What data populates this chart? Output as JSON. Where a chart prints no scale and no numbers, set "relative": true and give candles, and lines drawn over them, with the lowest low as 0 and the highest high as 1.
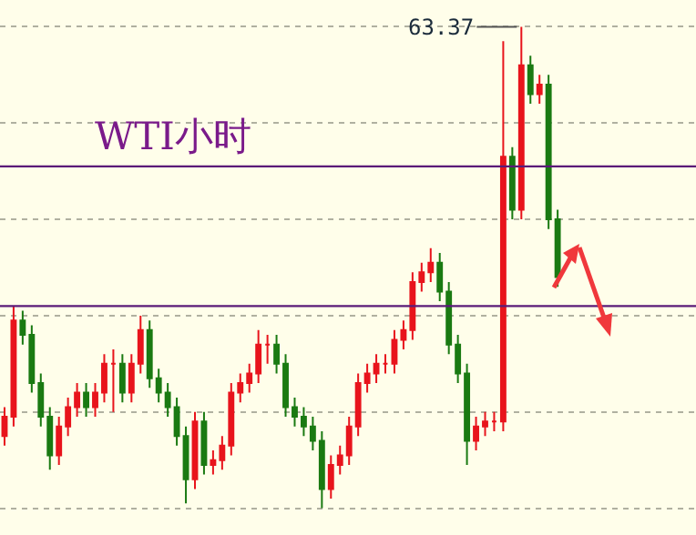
{
  "chart_data": {
    "type": "candlestick",
    "title": "WTI小时",
    "relative": true,
    "grid": "y",
    "categories": [
      null,
      null,
      null,
      null,
      null,
      null,
      null,
      null,
      null,
      null,
      null,
      null,
      null,
      null,
      null,
      null,
      null,
      null,
      null,
      null,
      null,
      null,
      null,
      null,
      null,
      null,
      null,
      null,
      null,
      null,
      null,
      null,
      null,
      null,
      null,
      null,
      null,
      null,
      null,
      null,
      null,
      null,
      null,
      null,
      null,
      null,
      null,
      null,
      null,
      null,
      null,
      null,
      null,
      null,
      null,
      null,
      null,
      null,
      null,
      null,
      null,
      null
    ],
    "ohlc": [
      [
        0.15,
        0.21,
        0.13,
        0.19
      ],
      [
        0.19,
        0.42,
        0.17,
        0.39
      ],
      [
        0.39,
        0.41,
        0.34,
        0.36
      ],
      [
        0.36,
        0.38,
        0.24,
        0.26
      ],
      [
        0.26,
        0.28,
        0.17,
        0.19
      ],
      [
        0.19,
        0.21,
        0.08,
        0.11
      ],
      [
        0.11,
        0.19,
        0.09,
        0.17
      ],
      [
        0.17,
        0.23,
        0.15,
        0.21
      ],
      [
        0.21,
        0.26,
        0.19,
        0.24
      ],
      [
        0.24,
        0.26,
        0.19,
        0.21
      ],
      [
        0.21,
        0.26,
        0.19,
        0.24
      ],
      [
        0.24,
        0.32,
        0.22,
        0.3
      ],
      [
        0.3,
        0.33,
        0.2,
        0.3
      ],
      [
        0.3,
        0.32,
        0.22,
        0.24
      ],
      [
        0.24,
        0.32,
        0.22,
        0.3
      ],
      [
        0.3,
        0.4,
        0.28,
        0.37
      ],
      [
        0.37,
        0.39,
        0.25,
        0.27
      ],
      [
        0.27,
        0.29,
        0.22,
        0.24
      ],
      [
        0.24,
        0.26,
        0.19,
        0.21
      ],
      [
        0.21,
        0.23,
        0.13,
        0.15
      ],
      [
        0.15,
        0.17,
        0.01,
        0.06
      ],
      [
        0.06,
        0.2,
        0.04,
        0.18
      ],
      [
        0.18,
        0.2,
        0.07,
        0.09
      ],
      [
        0.09,
        0.12,
        0.07,
        0.1
      ],
      [
        0.1,
        0.15,
        0.08,
        0.13
      ],
      [
        0.13,
        0.26,
        0.11,
        0.24
      ],
      [
        0.24,
        0.28,
        0.22,
        0.26
      ],
      [
        0.26,
        0.3,
        0.24,
        0.28
      ],
      [
        0.28,
        0.37,
        0.26,
        0.34
      ],
      [
        0.34,
        0.36,
        0.3,
        0.34
      ],
      [
        0.34,
        0.36,
        0.28,
        0.3
      ],
      [
        0.3,
        0.32,
        0.19,
        0.21
      ],
      [
        0.21,
        0.23,
        0.17,
        0.19
      ],
      [
        0.19,
        0.21,
        0.15,
        0.17
      ],
      [
        0.17,
        0.19,
        0.12,
        0.14
      ],
      [
        0.14,
        0.16,
        0.0,
        0.04
      ],
      [
        0.04,
        0.11,
        0.02,
        0.09
      ],
      [
        0.09,
        0.13,
        0.07,
        0.11
      ],
      [
        0.11,
        0.19,
        0.09,
        0.17
      ],
      [
        0.17,
        0.28,
        0.15,
        0.26
      ],
      [
        0.26,
        0.3,
        0.24,
        0.28
      ],
      [
        0.28,
        0.32,
        0.26,
        0.3
      ],
      [
        0.3,
        0.32,
        0.28,
        0.3
      ],
      [
        0.3,
        0.37,
        0.28,
        0.35
      ],
      [
        0.35,
        0.39,
        0.33,
        0.37
      ],
      [
        0.37,
        0.49,
        0.35,
        0.47
      ],
      [
        0.47,
        0.51,
        0.45,
        0.49
      ],
      [
        0.49,
        0.54,
        0.47,
        0.51
      ],
      [
        0.51,
        0.53,
        0.43,
        0.45
      ],
      [
        0.45,
        0.47,
        0.32,
        0.34
      ],
      [
        0.34,
        0.36,
        0.26,
        0.28
      ],
      [
        0.28,
        0.3,
        0.09,
        0.14
      ],
      [
        0.14,
        0.19,
        0.12,
        0.17
      ],
      [
        0.17,
        0.2,
        0.15,
        0.18
      ],
      [
        0.18,
        0.2,
        0.16,
        0.18
      ],
      [
        0.18,
        0.97,
        0.16,
        0.73
      ],
      [
        0.73,
        0.75,
        0.6,
        0.62
      ],
      [
        0.62,
        1.0,
        0.6,
        0.92
      ],
      [
        0.92,
        0.94,
        0.84,
        0.86
      ],
      [
        0.86,
        0.9,
        0.84,
        0.88
      ],
      [
        0.88,
        0.9,
        0.58,
        0.6
      ],
      [
        0.6,
        0.62,
        0.46,
        0.48
      ]
    ],
    "colors": [
      "#e8141c",
      "#e8141c",
      "#1a7a12",
      "#1a7a12",
      "#1a7a12",
      "#1a7a12",
      "#e8141c",
      "#e8141c",
      "#e8141c",
      "#1a7a12",
      "#e8141c",
      "#e8141c",
      "#e8141c",
      "#1a7a12",
      "#e8141c",
      "#e8141c",
      "#1a7a12",
      "#1a7a12",
      "#1a7a12",
      "#1a7a12",
      "#1a7a12",
      "#e8141c",
      "#1a7a12",
      "#e8141c",
      "#e8141c",
      "#e8141c",
      "#e8141c",
      "#e8141c",
      "#e8141c",
      "#e8141c",
      "#1a7a12",
      "#1a7a12",
      "#1a7a12",
      "#1a7a12",
      "#1a7a12",
      "#1a7a12",
      "#e8141c",
      "#e8141c",
      "#e8141c",
      "#e8141c",
      "#e8141c",
      "#e8141c",
      "#e8141c",
      "#e8141c",
      "#e8141c",
      "#e8141c",
      "#e8141c",
      "#e8141c",
      "#1a7a12",
      "#1a7a12",
      "#1a7a12",
      "#1a7a12",
      "#e8141c",
      "#e8141c",
      "#e8141c",
      "#e8141c",
      "#1a7a12",
      "#e8141c",
      "#1a7a12",
      "#e8141c",
      "#1a7a12",
      "#1a7a12"
    ],
    "annotations": [
      "63.37"
    ],
    "ref_lines": [
      {
        "axis": "y",
        "value": 0.71,
        "color": "#5a1a78"
      },
      {
        "axis": "y",
        "value": 0.42,
        "color": "#5a1a78"
      }
    ]
  }
}
